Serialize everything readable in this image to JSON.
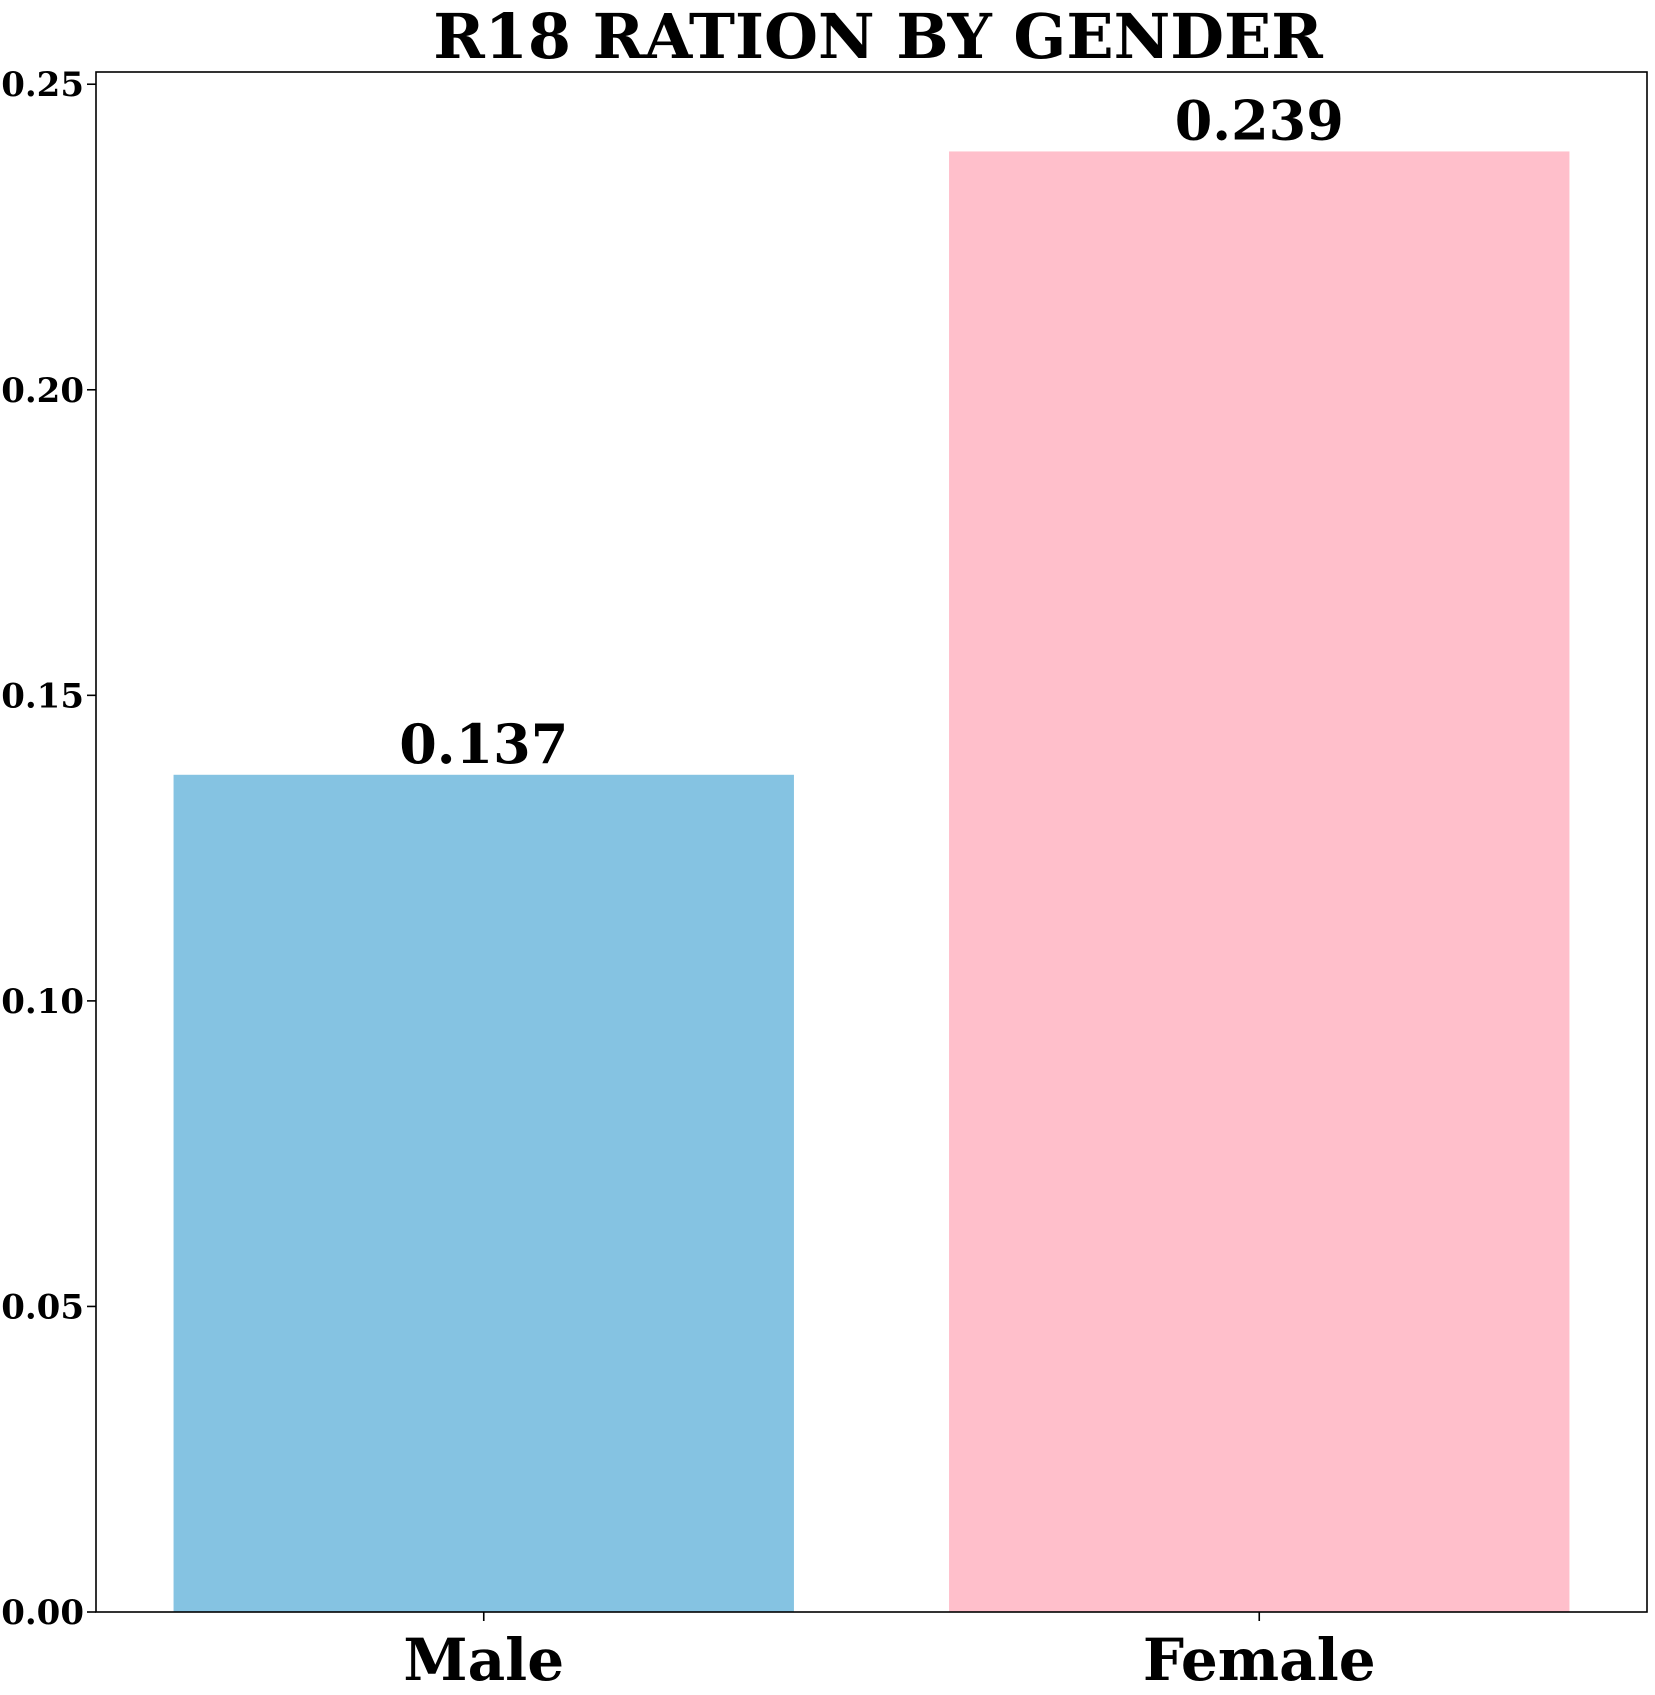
{
  "chart_data": {
    "type": "bar",
    "title": "R18 RATION BY GENDER",
    "xlabel": "",
    "ylabel": "",
    "categories": [
      "Male",
      "Female"
    ],
    "values": [
      0.137,
      0.239
    ],
    "data_labels": [
      "0.137",
      "0.239"
    ],
    "bar_colors": [
      "#85c3e2",
      "#ffbfcb"
    ],
    "ylim": [
      0,
      0.252
    ],
    "yticks": [
      0.0,
      0.05,
      0.1,
      0.15,
      0.2,
      0.25
    ],
    "ytick_labels": [
      "0.00",
      "0.05",
      "0.10",
      "0.15",
      "0.20",
      "0.25"
    ],
    "grid": false,
    "legend": false
  }
}
